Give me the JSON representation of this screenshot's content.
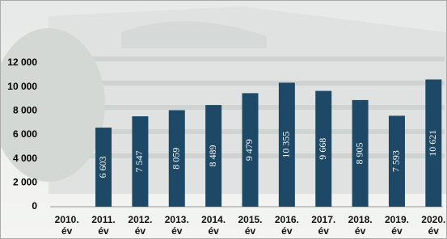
{
  "chart_data": {
    "type": "bar",
    "categories": [
      "2010. év",
      "2011. év",
      "2012. év",
      "2013. év",
      "2014. év",
      "2015. év",
      "2016. év",
      "2017. év",
      "2018. év",
      "2019. év",
      "2020. év"
    ],
    "values": [
      null,
      6603,
      7547,
      8059,
      8489,
      9479,
      10355,
      9668,
      8905,
      7593,
      10621
    ],
    "value_labels": [
      null,
      "6 603",
      "7 547",
      "8 059",
      "8 489",
      "9 479",
      "10 355",
      "9 668",
      "8 905",
      "7 593",
      "10 621"
    ],
    "color": "#1d4966",
    "ylim": [
      0,
      12000
    ],
    "yticks": [
      0,
      {
        "value": 2000,
        "label": "2 000"
      },
      {
        "value": 4000,
        "label": "4 000"
      },
      {
        "value": 6000,
        "label": "6 000"
      },
      {
        "value": 8000,
        "label": "8 000"
      },
      {
        "value": 10000,
        "label": "10 000"
      },
      {
        "value": 12000,
        "label": "12 000"
      }
    ],
    "grid": false
  }
}
